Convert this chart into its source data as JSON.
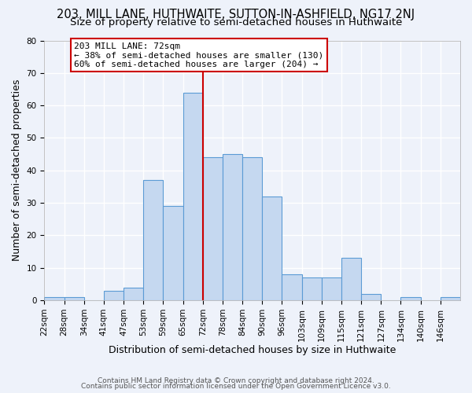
{
  "title": "203, MILL LANE, HUTHWAITE, SUTTON-IN-ASHFIELD, NG17 2NJ",
  "subtitle": "Size of property relative to semi-detached houses in Huthwaite",
  "xlabel": "Distribution of semi-detached houses by size in Huthwaite",
  "ylabel": "Number of semi-detached properties",
  "bin_labels": [
    "22sqm",
    "28sqm",
    "34sqm",
    "41sqm",
    "47sqm",
    "53sqm",
    "59sqm",
    "65sqm",
    "72sqm",
    "78sqm",
    "84sqm",
    "90sqm",
    "96sqm",
    "103sqm",
    "109sqm",
    "115sqm",
    "121sqm",
    "127sqm",
    "134sqm",
    "140sqm",
    "146sqm"
  ],
  "bin_edges": [
    0,
    1,
    2,
    3,
    4,
    5,
    6,
    7,
    8,
    9,
    10,
    11,
    12,
    13,
    14,
    15,
    16,
    17,
    18,
    19,
    20
  ],
  "bar_values": [
    1,
    1,
    0,
    3,
    4,
    37,
    29,
    64,
    44,
    45,
    44,
    32,
    8,
    7,
    7,
    13,
    2,
    0,
    1,
    0,
    1
  ],
  "bar_color": "#c5d8f0",
  "bar_edge_color": "#5b9bd5",
  "marker_bin": 8,
  "marker_color": "#cc0000",
  "ylim": [
    0,
    80
  ],
  "yticks": [
    0,
    10,
    20,
    30,
    40,
    50,
    60,
    70,
    80
  ],
  "annotation_title": "203 MILL LANE: 72sqm",
  "annotation_line1": "← 38% of semi-detached houses are smaller (130)",
  "annotation_line2": "60% of semi-detached houses are larger (204) →",
  "annotation_box_color": "#ffffff",
  "annotation_border_color": "#cc0000",
  "footer1": "Contains HM Land Registry data © Crown copyright and database right 2024.",
  "footer2": "Contains public sector information licensed under the Open Government Licence v3.0.",
  "bg_color": "#eef2fa",
  "grid_color": "#ffffff",
  "title_fontsize": 10.5,
  "subtitle_fontsize": 9.5,
  "axis_label_fontsize": 9,
  "tick_fontsize": 7.5,
  "footer_fontsize": 6.5
}
